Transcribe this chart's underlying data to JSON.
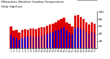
{
  "title": "Milwaukee Weather Outdoor Temperature",
  "subtitle": "Daily High/Low",
  "highs": [
    60,
    48,
    50,
    44,
    50,
    52,
    50,
    55,
    54,
    52,
    56,
    58,
    58,
    62,
    65,
    68,
    72,
    76,
    80,
    84,
    72,
    68,
    60,
    90,
    92,
    85,
    80,
    72,
    65,
    72,
    68
  ],
  "lows": [
    35,
    30,
    28,
    22,
    28,
    30,
    32,
    34,
    32,
    30,
    34,
    36,
    38,
    40,
    42,
    45,
    48,
    50,
    54,
    58,
    48,
    44,
    40,
    55,
    58,
    54,
    50,
    45,
    40,
    46,
    42
  ],
  "high_color": "#dd0000",
  "low_color": "#0000dd",
  "bg_color": "#ffffff",
  "plot_bg": "#ffffff",
  "ylim": [
    0,
    100
  ],
  "yticks": [
    20,
    40,
    60,
    80,
    100
  ],
  "dashed_line_x": 22.5,
  "n_days": 31
}
